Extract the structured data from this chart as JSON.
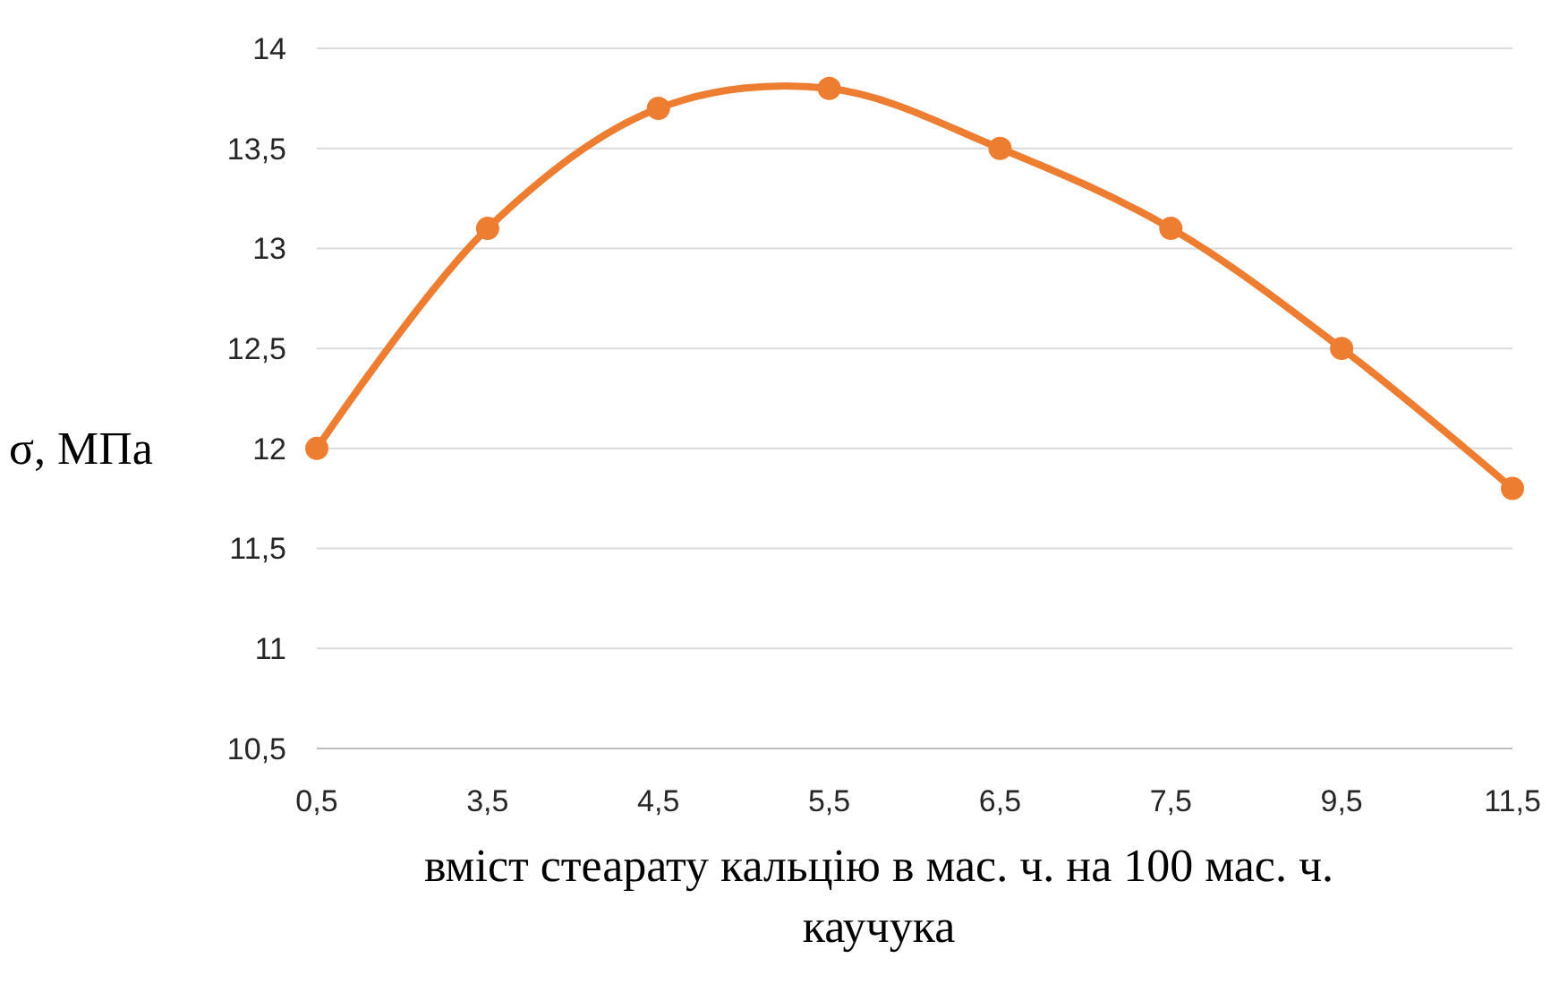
{
  "chart_data": {
    "type": "line",
    "ylabel": "σ, МПа",
    "xlabel": "вміст стеарату кальцію в мас. ч. на 100 мас. ч. каучука",
    "categories": [
      "0,5",
      "3,5",
      "4,5",
      "5,5",
      "6,5",
      "7,5",
      "9,5",
      "11,5"
    ],
    "series": [
      {
        "color": "#ed7d31",
        "values": [
          12,
          13.1,
          13.7,
          13.8,
          13.5,
          13.1,
          12.5,
          11.8
        ]
      }
    ],
    "ylim": [
      10.5,
      14
    ],
    "yticks": [
      {
        "value": 10.5,
        "label": "10,5"
      },
      11,
      {
        "value": 11.5,
        "label": "11,5"
      },
      12,
      {
        "value": 12.5,
        "label": "12,5"
      },
      13,
      {
        "value": 13.5,
        "label": "13,5"
      },
      14
    ],
    "grid": "y",
    "marker": "circle",
    "line_style": "solid"
  }
}
